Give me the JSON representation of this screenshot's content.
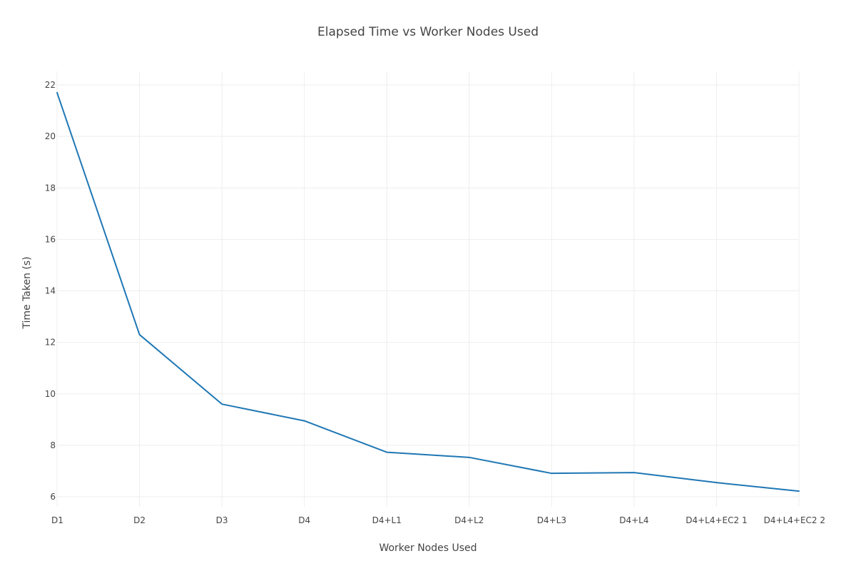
{
  "chart_data": {
    "type": "line",
    "title": "Elapsed Time vs  Worker Nodes Used",
    "xlabel": "Worker Nodes Used",
    "ylabel": "Time Taken (s)",
    "categories": [
      "D1",
      "D2",
      "D3",
      "D4",
      "D4+L1",
      "D4+L2",
      "D4+L3",
      "D4+L4",
      "D4+L4+EC2 1",
      "D4+L4+EC2 2"
    ],
    "series": [
      {
        "values": [
          21.7,
          12.3,
          9.6,
          8.95,
          7.73,
          7.53,
          6.91,
          6.94,
          6.55,
          6.22
        ],
        "color": "#1f77b4"
      }
    ],
    "ylim": [
      5.5,
      22.5
    ],
    "yticks": [
      6,
      8,
      10,
      12,
      14,
      16,
      18,
      20,
      22
    ],
    "grid": true,
    "legend": "none"
  }
}
